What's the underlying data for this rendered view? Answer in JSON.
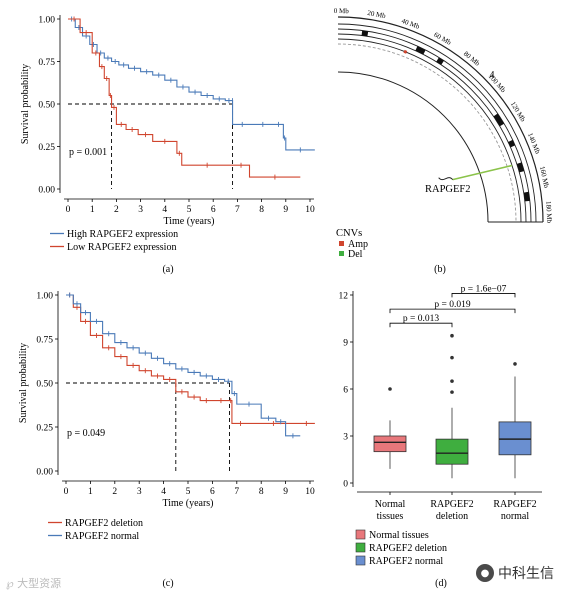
{
  "chart_data": [
    {
      "type": "line",
      "panel": "(a)",
      "ylabel": "Survival probability",
      "xlabel": "Time (years)",
      "xlim": [
        0,
        10
      ],
      "ylim": [
        0,
        1
      ],
      "xticks": [
        "0",
        "1",
        "2",
        "3",
        "4",
        "5",
        "6",
        "7",
        "8",
        "9",
        "10"
      ],
      "yticks": [
        "0.00",
        "0.25",
        "0.50",
        "0.75",
        "1.00"
      ],
      "pvalue": "p = 0.001",
      "median_lines": [
        1.8,
        6.8
      ],
      "series": [
        {
          "name": "High RAPGEF2 expression",
          "color": "#4a7ab8",
          "x": [
            0,
            0.3,
            0.6,
            0.9,
            1.2,
            1.5,
            1.8,
            2.1,
            2.5,
            3.0,
            3.5,
            4.0,
            4.5,
            5.0,
            5.5,
            6.0,
            6.5,
            6.8,
            6.8,
            7.6,
            8.5,
            8.9,
            9.0,
            10.2
          ],
          "y": [
            1.0,
            0.95,
            0.9,
            0.85,
            0.8,
            0.77,
            0.75,
            0.73,
            0.71,
            0.69,
            0.67,
            0.64,
            0.6,
            0.57,
            0.55,
            0.53,
            0.52,
            0.52,
            0.38,
            0.38,
            0.38,
            0.3,
            0.23,
            0.23
          ]
        },
        {
          "name": "Low RAPGEF2 expression",
          "color": "#d0452e",
          "x": [
            0,
            0.5,
            1.0,
            1.3,
            1.5,
            1.7,
            1.8,
            2.0,
            2.4,
            2.9,
            3.5,
            4.5,
            4.7,
            6.8,
            7.5,
            9.6
          ],
          "y": [
            1.0,
            0.92,
            0.8,
            0.72,
            0.65,
            0.55,
            0.48,
            0.38,
            0.35,
            0.32,
            0.28,
            0.21,
            0.14,
            0.14,
            0.07,
            0.07
          ]
        }
      ]
    },
    {
      "type": "line",
      "panel": "(c)",
      "ylabel": "Survival probability",
      "xlabel": "Time (years)",
      "xlim": [
        0,
        10
      ],
      "ylim": [
        0,
        1
      ],
      "xticks": [
        "0",
        "1",
        "2",
        "3",
        "4",
        "5",
        "6",
        "7",
        "8",
        "9",
        "10"
      ],
      "yticks": [
        "0.00",
        "0.25",
        "0.50",
        "0.75",
        "1.00"
      ],
      "pvalue": "p = 0.049",
      "median_lines": [
        4.5,
        6.7
      ],
      "series": [
        {
          "name": "RAPGEF2 deletion",
          "color": "#d0452e",
          "x": [
            0,
            0.3,
            0.6,
            1.0,
            1.5,
            2.0,
            2.5,
            3.0,
            3.5,
            4.0,
            4.5,
            5.0,
            5.5,
            6.0,
            6.7,
            6.8,
            7.5,
            9.5,
            10.2
          ],
          "y": [
            1.0,
            0.93,
            0.85,
            0.77,
            0.7,
            0.65,
            0.6,
            0.57,
            0.54,
            0.52,
            0.45,
            0.42,
            0.4,
            0.4,
            0.4,
            0.27,
            0.27,
            0.27,
            0.27
          ]
        },
        {
          "name": "RAPGEF2 normal",
          "color": "#4a7ab8",
          "x": [
            0,
            0.3,
            0.6,
            1.0,
            1.5,
            2.0,
            2.5,
            3.0,
            3.5,
            4.0,
            4.5,
            5.0,
            5.5,
            6.0,
            6.5,
            6.8,
            7.0,
            8.0,
            8.6,
            9.0,
            9.6
          ],
          "y": [
            1.0,
            0.95,
            0.9,
            0.85,
            0.78,
            0.73,
            0.7,
            0.67,
            0.64,
            0.61,
            0.58,
            0.56,
            0.54,
            0.52,
            0.51,
            0.44,
            0.38,
            0.3,
            0.28,
            0.2,
            0.2
          ]
        }
      ]
    },
    {
      "type": "box",
      "panel": "(d)",
      "ylim": [
        0,
        12
      ],
      "yticks": [
        "0",
        "3",
        "6",
        "9",
        "12"
      ],
      "categories": [
        "Normal tissues",
        "RAPGEF2 deletion",
        "RAPGEF2 normal"
      ],
      "category_lines": [
        [
          "Normal",
          "tissues"
        ],
        [
          "RAPGEF2",
          "deletion"
        ],
        [
          "RAPGEF2",
          "normal"
        ]
      ],
      "boxes": [
        {
          "q1": 2.0,
          "median": 2.6,
          "q3": 3.0,
          "lo": 0.9,
          "hi": 4.0,
          "outliers": [
            6.0
          ],
          "color": "#e8777b"
        },
        {
          "q1": 1.2,
          "median": 1.9,
          "q3": 2.8,
          "lo": 0.3,
          "hi": 4.8,
          "outliers": [
            5.8,
            6.5,
            8.0,
            9.4
          ],
          "color": "#3fae3f"
        },
        {
          "q1": 1.8,
          "median": 2.8,
          "q3": 3.9,
          "lo": 0.3,
          "hi": 6.8,
          "outliers": [
            7.6
          ],
          "color": "#6a8fd0"
        }
      ],
      "comparisons": [
        {
          "label": "p = 0.013",
          "from": 0,
          "to": 1,
          "level": 0
        },
        {
          "label": "p = 0.019",
          "from": 0,
          "to": 2,
          "level": 1
        },
        {
          "label": "p = 1.6e−07",
          "from": 1,
          "to": 2,
          "level": 2
        }
      ],
      "legend": [
        "Normal tissues",
        "RAPGEF2 deletion",
        "RAPGEF2 normal"
      ]
    }
  ],
  "circos": {
    "panel": "(b)",
    "chromosome": "4",
    "ticks": [
      "0 Mb",
      "20 Mb",
      "40 Mb",
      "60 Mb",
      "80 Mb",
      "100 Mb",
      "120 Mb",
      "140 Mb",
      "160 Mb",
      "180 Mb"
    ],
    "gene_label": "RAPGEF2",
    "cnv_title": "CNVs",
    "cnv_items": [
      {
        "label": "Amp",
        "color": "#d0452e"
      },
      {
        "label": "Del",
        "color": "#3fae3f"
      }
    ]
  },
  "panel_labels": {
    "a": "(a)",
    "b": "(b)",
    "c": "(c)",
    "d": "(d)"
  },
  "watermark": "℘ 大型资源",
  "brand": "中科生信",
  "brand_icon": "wechat-icon"
}
